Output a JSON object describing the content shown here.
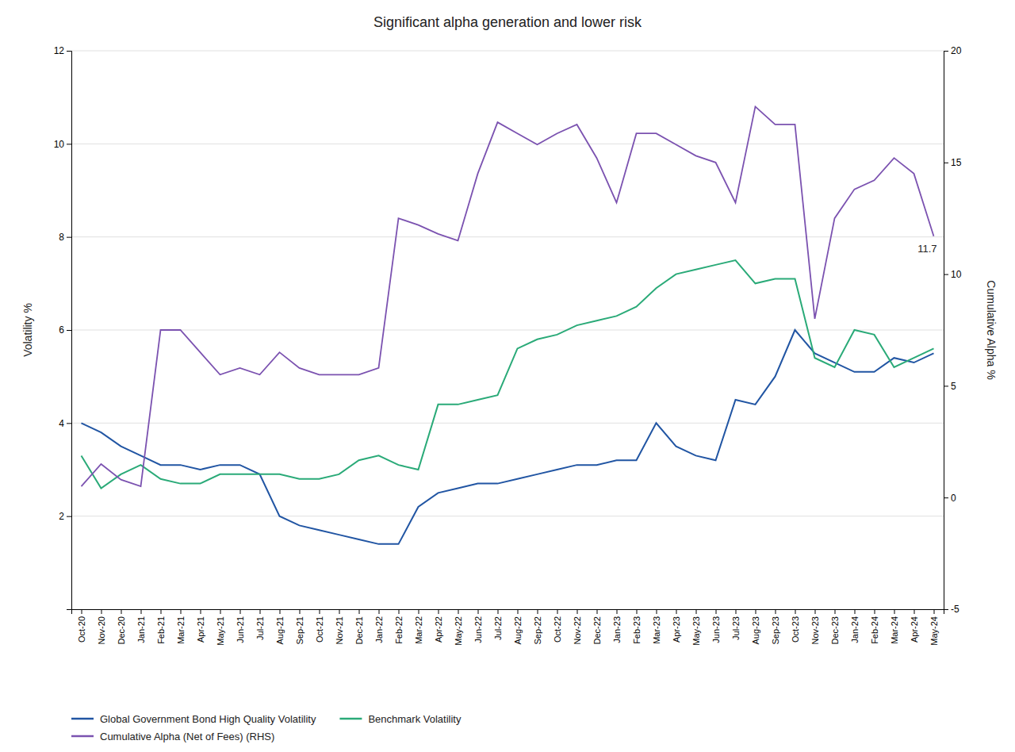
{
  "chart_data": {
    "type": "line",
    "title": "Significant alpha generation and lower risk",
    "ylabel": "Volatility %",
    "y2label": "Cumulative Alpha %",
    "categories": [
      "Oct-20",
      "Nov-20",
      "Dec-20",
      "Jan-21",
      "Feb-21",
      "Mar-21",
      "Apr-21",
      "May-21",
      "Jun-21",
      "Jul-21",
      "Aug-21",
      "Sep-21",
      "Oct-21",
      "Nov-21",
      "Dec-21",
      "Jan-22",
      "Feb-22",
      "Mar-22",
      "Apr-22",
      "May-22",
      "Jun-22",
      "Jul-22",
      "Aug-22",
      "Sep-22",
      "Oct-22",
      "Nov-22",
      "Dec-22",
      "Jan-23",
      "Feb-23",
      "Mar-23",
      "Apr-23",
      "May-23",
      "Jun-23",
      "Jul-23",
      "Aug-23",
      "Sep-23",
      "Oct-23",
      "Nov-23",
      "Dec-23",
      "Jan-24",
      "Feb-24",
      "Mar-24",
      "Apr-24",
      "May-24"
    ],
    "series": [
      {
        "name": "Global Government Bond High Quality Volatility",
        "color": "#2155a3",
        "values": [
          4.0,
          3.8,
          3.5,
          3.3,
          3.1,
          3.1,
          3.0,
          3.1,
          3.1,
          2.9,
          2.0,
          1.8,
          1.7,
          1.6,
          1.5,
          1.4,
          1.4,
          2.2,
          2.5,
          2.6,
          2.7,
          2.7,
          2.8,
          2.9,
          3.0,
          3.1,
          3.1,
          3.2,
          3.2,
          4.0,
          3.5,
          3.3,
          3.2,
          4.5,
          4.4,
          5.0,
          6.0,
          5.5,
          5.3,
          5.1,
          5.1,
          5.4,
          5.3,
          5.5
        ]
      },
      {
        "name": "Benchmark Volatility",
        "color": "#2aaa78",
        "values": [
          3.3,
          2.6,
          2.9,
          3.1,
          2.8,
          2.7,
          2.7,
          2.9,
          2.9,
          2.9,
          2.9,
          2.8,
          2.8,
          2.9,
          3.2,
          3.3,
          3.1,
          3.0,
          4.4,
          4.4,
          4.5,
          4.6,
          5.6,
          5.8,
          5.9,
          6.1,
          6.2,
          6.3,
          6.5,
          6.9,
          7.2,
          7.3,
          7.4,
          7.5,
          7.0,
          7.1,
          7.1,
          5.4,
          5.2,
          6.0,
          5.9,
          5.2,
          5.4,
          5.6
        ]
      },
      {
        "name": "Cumulative Alpha (Net of Fees) (RHS)",
        "color": "#7b52b0",
        "axis": "y2",
        "values": [
          0.5,
          1.5,
          0.8,
          0.5,
          7.5,
          7.5,
          6.5,
          5.5,
          5.8,
          5.5,
          6.5,
          5.8,
          5.5,
          5.5,
          5.5,
          5.8,
          12.5,
          12.2,
          11.8,
          11.5,
          14.5,
          16.8,
          16.3,
          15.8,
          16.3,
          16.7,
          15.2,
          13.2,
          16.3,
          16.3,
          15.8,
          15.3,
          15.0,
          13.2,
          17.5,
          16.7,
          16.7,
          8.0,
          12.5,
          13.8,
          14.2,
          15.2,
          14.5,
          11.7
        ]
      }
    ],
    "ylim": [
      0,
      12
    ],
    "yticks": [
      2,
      4,
      6,
      8,
      10,
      12
    ],
    "y2lim": [
      -5,
      20
    ],
    "y2ticks": [
      -5,
      0,
      5,
      10,
      15,
      20
    ],
    "grid": true,
    "legend": "lower left",
    "annotations": [
      {
        "text": "11.7",
        "x": "May-24",
        "y": 11.7,
        "axis": "y2"
      }
    ]
  }
}
